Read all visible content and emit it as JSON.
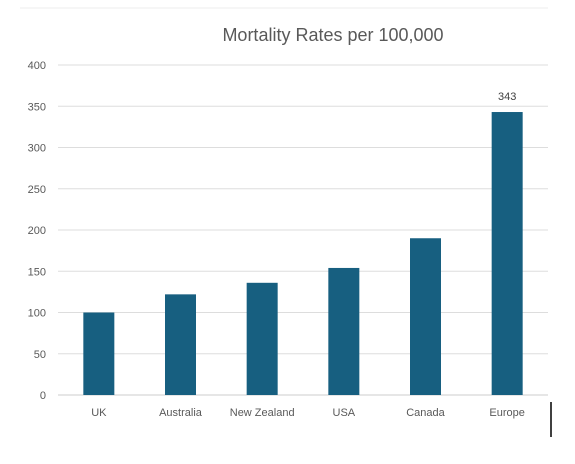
{
  "chart_data": {
    "type": "bar",
    "title": "Mortality Rates per 100,000",
    "xlabel": "",
    "ylabel": "",
    "categories": [
      "UK",
      "Australia",
      "New Zealand",
      "USA",
      "Canada",
      "Europe"
    ],
    "values": [
      100,
      122,
      136,
      154,
      190,
      343
    ],
    "data_labels": [
      "",
      "",
      "",
      "",
      "",
      "343"
    ],
    "ylim": [
      0,
      400
    ],
    "yticks": [
      0,
      50,
      100,
      150,
      200,
      250,
      300,
      350,
      400
    ],
    "grid": true,
    "legend": "none",
    "colors": {
      "bar": "#175f80",
      "grid": "#dddddd",
      "axis": "#cccccc",
      "text": "#595959",
      "title": "#595959"
    }
  }
}
